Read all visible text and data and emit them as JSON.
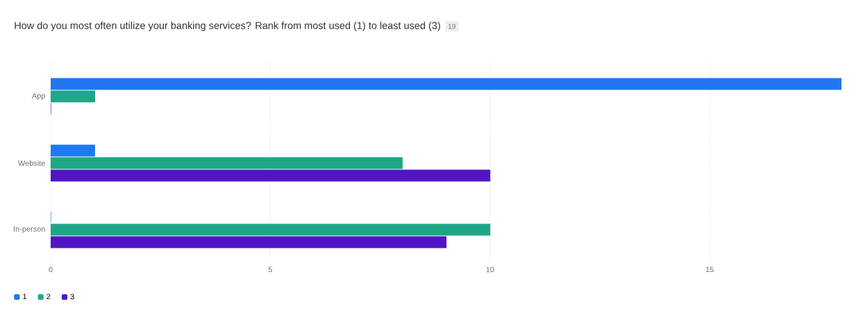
{
  "chart_data": {
    "type": "bar",
    "orientation": "horizontal",
    "title": "How do you most often utilize your banking services? Rank from most used (1) to least used (3)",
    "subtitle": "19",
    "categories": [
      "App",
      "Website",
      "In-person"
    ],
    "series": [
      {
        "name": "1",
        "color": "#2176f2",
        "values": [
          18,
          1,
          0
        ]
      },
      {
        "name": "2",
        "color": "#1ea787",
        "values": [
          1,
          8,
          10
        ]
      },
      {
        "name": "3",
        "color": "#5215c5",
        "values": [
          0,
          10,
          9
        ]
      }
    ],
    "xlim": [
      0,
      18
    ],
    "xticks": [
      0,
      5,
      10,
      15
    ],
    "grid": "x",
    "legend": "bottom left"
  }
}
